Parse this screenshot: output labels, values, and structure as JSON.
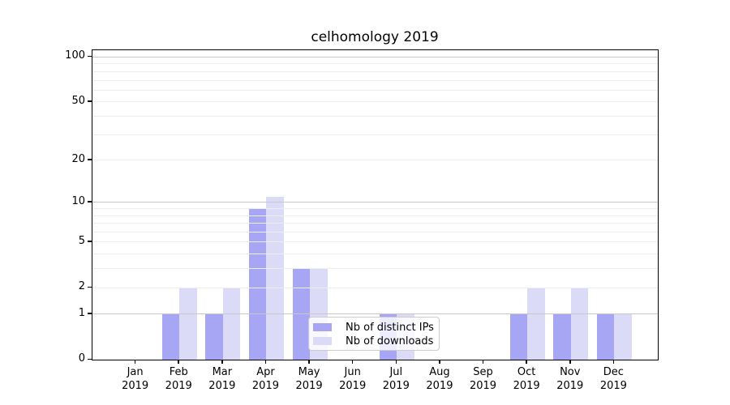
{
  "title": "celhomology 2019",
  "chart_data": {
    "type": "bar",
    "title": "celhomology 2019",
    "categories": [
      "Jan",
      "Feb",
      "Mar",
      "Apr",
      "May",
      "Jun",
      "Jul",
      "Aug",
      "Sep",
      "Oct",
      "Nov",
      "Dec"
    ],
    "x_year": "2019",
    "series": [
      {
        "name": "Nb of distinct IPs",
        "color": "#a6a6f4",
        "values": [
          0,
          1,
          1,
          9,
          3,
          0,
          1,
          0,
          0,
          1,
          1,
          1
        ]
      },
      {
        "name": "Nb of downloads",
        "color": "#dbdbf8",
        "values": [
          0,
          2,
          2,
          11,
          3,
          0,
          1,
          0,
          0,
          2,
          2,
          1
        ]
      }
    ],
    "yscale": "log1p",
    "yticks": [
      0,
      1,
      2,
      5,
      10,
      20,
      50,
      100
    ],
    "ylim": [
      0,
      110
    ],
    "grid": true,
    "legend_position": "inside-lower-center",
    "colors": {
      "major_gridline": "#c8c8c8",
      "minor_gridline": "#ededed",
      "spine": "#000000",
      "background": "#ffffff"
    }
  }
}
